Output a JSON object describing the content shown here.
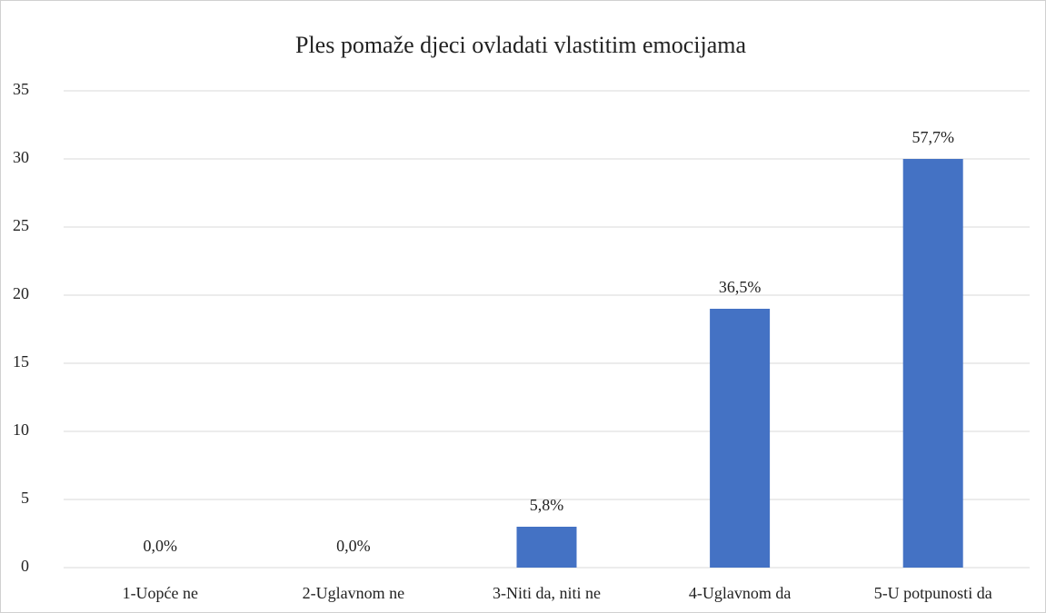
{
  "chart_data": {
    "type": "bar",
    "title": "Ples pomaže djeci ovladati vlastitim emocijama",
    "categories": [
      "1-Uopće ne",
      "2-Uglavnom ne",
      "3-Niti da, niti ne",
      "4-Uglavnom da",
      "5-U potpunosti da"
    ],
    "values": [
      0,
      0,
      3,
      19,
      30
    ],
    "value_labels": [
      "0,0%",
      "0,0%",
      "5,8%",
      "36,5%",
      "57,7%"
    ],
    "color": "#4472c4",
    "ylim": [
      0,
      35
    ],
    "yticks": [
      0,
      5,
      10,
      15,
      20,
      25,
      30,
      35
    ],
    "grid": true
  }
}
